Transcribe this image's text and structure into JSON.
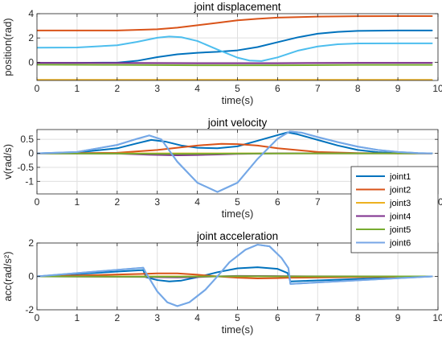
{
  "chart_data": [
    {
      "type": "line",
      "title": "joint displacement",
      "xlabel": "time(s)",
      "ylabel": "position(rad)",
      "xlim": [
        0,
        10
      ],
      "ylim": [
        -1.5,
        4
      ],
      "xticks": [
        0,
        1,
        2,
        3,
        4,
        5,
        6,
        7,
        8,
        9,
        10
      ],
      "yticks": [
        0,
        2,
        4
      ],
      "grid": true,
      "series": [
        {
          "color": "#D95319",
          "x": [
            0,
            1,
            2,
            3,
            3.5,
            4,
            4.5,
            5,
            5.5,
            6,
            7,
            8,
            9,
            9.85
          ],
          "y": [
            2.62,
            2.62,
            2.62,
            2.72,
            2.85,
            3.05,
            3.25,
            3.45,
            3.58,
            3.68,
            3.76,
            3.79,
            3.8,
            3.8
          ]
        },
        {
          "color": "#0072BD",
          "x": [
            0,
            1,
            2,
            2.5,
            3,
            3.5,
            4,
            4.5,
            5,
            5.5,
            6,
            6.5,
            7,
            7.5,
            8,
            9,
            9.85
          ],
          "y": [
            -0.05,
            -0.05,
            -0.03,
            0.12,
            0.42,
            0.65,
            0.78,
            0.86,
            0.98,
            1.25,
            1.65,
            2.05,
            2.35,
            2.5,
            2.58,
            2.62,
            2.62
          ]
        },
        {
          "color": "#4DBEEE",
          "x": [
            0,
            1,
            2,
            2.5,
            3,
            3.3,
            3.6,
            4,
            4.5,
            5,
            5.3,
            5.6,
            6,
            6.5,
            7,
            7.5,
            8,
            9,
            9.85
          ],
          "y": [
            1.2,
            1.22,
            1.4,
            1.68,
            2.02,
            2.12,
            2.06,
            1.75,
            1.05,
            0.38,
            0.14,
            0.1,
            0.4,
            0.95,
            1.3,
            1.48,
            1.55,
            1.56,
            1.56
          ]
        },
        {
          "color": "#7E2F8E",
          "x": [
            0,
            2,
            4,
            6,
            8,
            9.85
          ],
          "y": [
            -0.05,
            -0.06,
            -0.08,
            -0.08,
            -0.05,
            -0.05
          ]
        },
        {
          "color": "#77AC30",
          "x": [
            0,
            2,
            4,
            6,
            8,
            9.85
          ],
          "y": [
            -0.2,
            -0.22,
            -0.25,
            -0.25,
            -0.22,
            -0.22
          ]
        },
        {
          "color": "#EDB120",
          "x": [
            0,
            9.85
          ],
          "y": [
            -1.45,
            -1.45
          ]
        }
      ]
    },
    {
      "type": "line",
      "title": "joint velocity",
      "xlabel": "time(s)",
      "ylabel": "v(rad/s)",
      "xlim": [
        0,
        10
      ],
      "ylim": [
        -1.45,
        0.85
      ],
      "xticks": [
        0,
        1,
        2,
        3,
        4,
        5,
        6,
        7,
        8,
        9,
        10
      ],
      "yticks": [
        -1,
        -0.5,
        0,
        0.5
      ],
      "ytick_labels": [
        "-1",
        "-0.5",
        "0",
        "0.5"
      ],
      "grid": true,
      "series": [
        {
          "color": "#0072BD",
          "x": [
            0,
            1,
            2,
            2.5,
            2.85,
            3.2,
            3.6,
            4,
            4.5,
            5,
            5.5,
            6,
            6.25,
            6.5,
            7,
            7.5,
            8,
            8.5,
            9,
            9.85
          ],
          "y": [
            0,
            0.03,
            0.18,
            0.36,
            0.48,
            0.42,
            0.28,
            0.2,
            0.18,
            0.25,
            0.45,
            0.65,
            0.75,
            0.68,
            0.48,
            0.28,
            0.12,
            0.04,
            0.01,
            0
          ]
        },
        {
          "color": "#D95319",
          "x": [
            0,
            2,
            3,
            4,
            4.6,
            5,
            5.5,
            6,
            7,
            8,
            9,
            9.85
          ],
          "y": [
            0,
            0.02,
            0.12,
            0.28,
            0.34,
            0.33,
            0.28,
            0.18,
            0.05,
            0.01,
            0,
            0
          ]
        },
        {
          "color": "#EDB120",
          "x": [
            0,
            9.85
          ],
          "y": [
            0,
            0
          ]
        },
        {
          "color": "#7E2F8E",
          "x": [
            0,
            2,
            2.8,
            3.5,
            4,
            4.5,
            5,
            6,
            7,
            9.85
          ],
          "y": [
            0,
            -0.01,
            -0.05,
            -0.07,
            -0.06,
            -0.04,
            -0.02,
            0,
            0,
            0
          ]
        },
        {
          "color": "#77AC30",
          "x": [
            0,
            2,
            3.5,
            5,
            7,
            9.85
          ],
          "y": [
            0,
            -0.01,
            -0.02,
            -0.01,
            0,
            0
          ]
        },
        {
          "color": "#4DBEEE",
          "x": [
            0,
            1,
            2,
            2.5,
            2.8,
            3.1,
            3.5,
            4,
            4.5,
            5,
            5.5,
            6,
            6.3,
            6.6,
            7,
            7.5,
            8,
            8.5,
            9,
            9.5,
            9.85
          ],
          "y": [
            0,
            0.05,
            0.3,
            0.52,
            0.64,
            0.5,
            -0.3,
            -1.05,
            -1.38,
            -1.05,
            -0.2,
            0.52,
            0.78,
            0.74,
            0.58,
            0.4,
            0.24,
            0.12,
            0.05,
            0.01,
            0
          ]
        },
        {
          "color": "#77A6E6",
          "x": [
            0,
            1,
            2,
            2.5,
            2.8,
            3.1,
            3.5,
            4,
            4.5,
            5,
            5.5,
            6,
            6.3,
            6.6,
            7,
            7.5,
            8,
            8.5,
            9,
            9.5,
            9.85
          ],
          "y": [
            0,
            0.05,
            0.3,
            0.52,
            0.64,
            0.5,
            -0.3,
            -1.05,
            -1.38,
            -1.05,
            -0.2,
            0.52,
            0.78,
            0.74,
            0.58,
            0.4,
            0.24,
            0.12,
            0.05,
            0.01,
            0
          ]
        }
      ]
    },
    {
      "type": "line",
      "title": "joint acceleration",
      "xlabel": "time(s)",
      "ylabel": "acc(rad/s²)",
      "xlim": [
        0,
        10
      ],
      "ylim": [
        -2,
        2
      ],
      "xticks": [
        0,
        1,
        2,
        3,
        4,
        5,
        6,
        7,
        8,
        9,
        10
      ],
      "yticks": [
        -2,
        0,
        2
      ],
      "grid": true,
      "series": [
        {
          "color": "#0072BD",
          "x": [
            0,
            2.65,
            2.72,
            3,
            3.3,
            3.6,
            4,
            4.5,
            5,
            5.5,
            6,
            6.25,
            6.32,
            9.85
          ],
          "y": [
            0,
            0.38,
            -0.05,
            -0.22,
            -0.3,
            -0.25,
            -0.05,
            0.25,
            0.48,
            0.55,
            0.45,
            0.2,
            -0.3,
            0
          ]
        },
        {
          "color": "#D95319",
          "x": [
            0,
            2.65,
            3,
            3.5,
            4,
            4.5,
            5,
            5.5,
            6,
            6.3,
            9.85
          ],
          "y": [
            0,
            0.15,
            0.18,
            0.18,
            0.1,
            0,
            -0.08,
            -0.12,
            -0.1,
            -0.08,
            0
          ]
        },
        {
          "color": "#EDB120",
          "x": [
            0,
            9.85
          ],
          "y": [
            0,
            0
          ]
        },
        {
          "color": "#7E2F8E",
          "x": [
            0,
            2.65,
            3,
            3.5,
            4,
            4.5,
            5,
            6,
            6.3,
            9.85
          ],
          "y": [
            0,
            -0.03,
            -0.05,
            -0.06,
            -0.04,
            0,
            0.03,
            0.02,
            0.01,
            0
          ]
        },
        {
          "color": "#77AC30",
          "x": [
            0,
            2.65,
            3.5,
            5,
            6.3,
            9.85
          ],
          "y": [
            0,
            -0.02,
            -0.02,
            0.01,
            0,
            0
          ]
        },
        {
          "color": "#4DBEEE",
          "x": [
            0,
            2.65,
            2.72,
            3,
            3.25,
            3.5,
            3.8,
            4.2,
            4.5,
            4.8,
            5.2,
            5.5,
            5.8,
            6.1,
            6.27,
            6.32,
            9.85
          ],
          "y": [
            0,
            0.52,
            0.2,
            -0.9,
            -1.55,
            -1.78,
            -1.55,
            -0.8,
            0,
            0.85,
            1.6,
            1.9,
            1.8,
            1.1,
            0.5,
            -0.45,
            0
          ]
        },
        {
          "color": "#77A6E6",
          "x": [
            0,
            2.65,
            2.72,
            3,
            3.25,
            3.5,
            3.8,
            4.2,
            4.5,
            4.8,
            5.2,
            5.5,
            5.8,
            6.1,
            6.27,
            6.32,
            9.85
          ],
          "y": [
            0,
            0.52,
            0.2,
            -0.9,
            -1.55,
            -1.78,
            -1.55,
            -0.8,
            0,
            0.85,
            1.6,
            1.9,
            1.8,
            1.1,
            0.5,
            -0.45,
            0
          ]
        }
      ]
    }
  ],
  "legend": {
    "placement": "right",
    "entries": [
      {
        "label": "joint1",
        "color": "#0072BD"
      },
      {
        "label": "joint2",
        "color": "#D95319"
      },
      {
        "label": "joint3",
        "color": "#EDB120"
      },
      {
        "label": "joint4",
        "color": "#7E2F8E"
      },
      {
        "label": "joint5",
        "color": "#77AC30"
      },
      {
        "label": "joint6",
        "color": "#77A6E6"
      }
    ]
  }
}
